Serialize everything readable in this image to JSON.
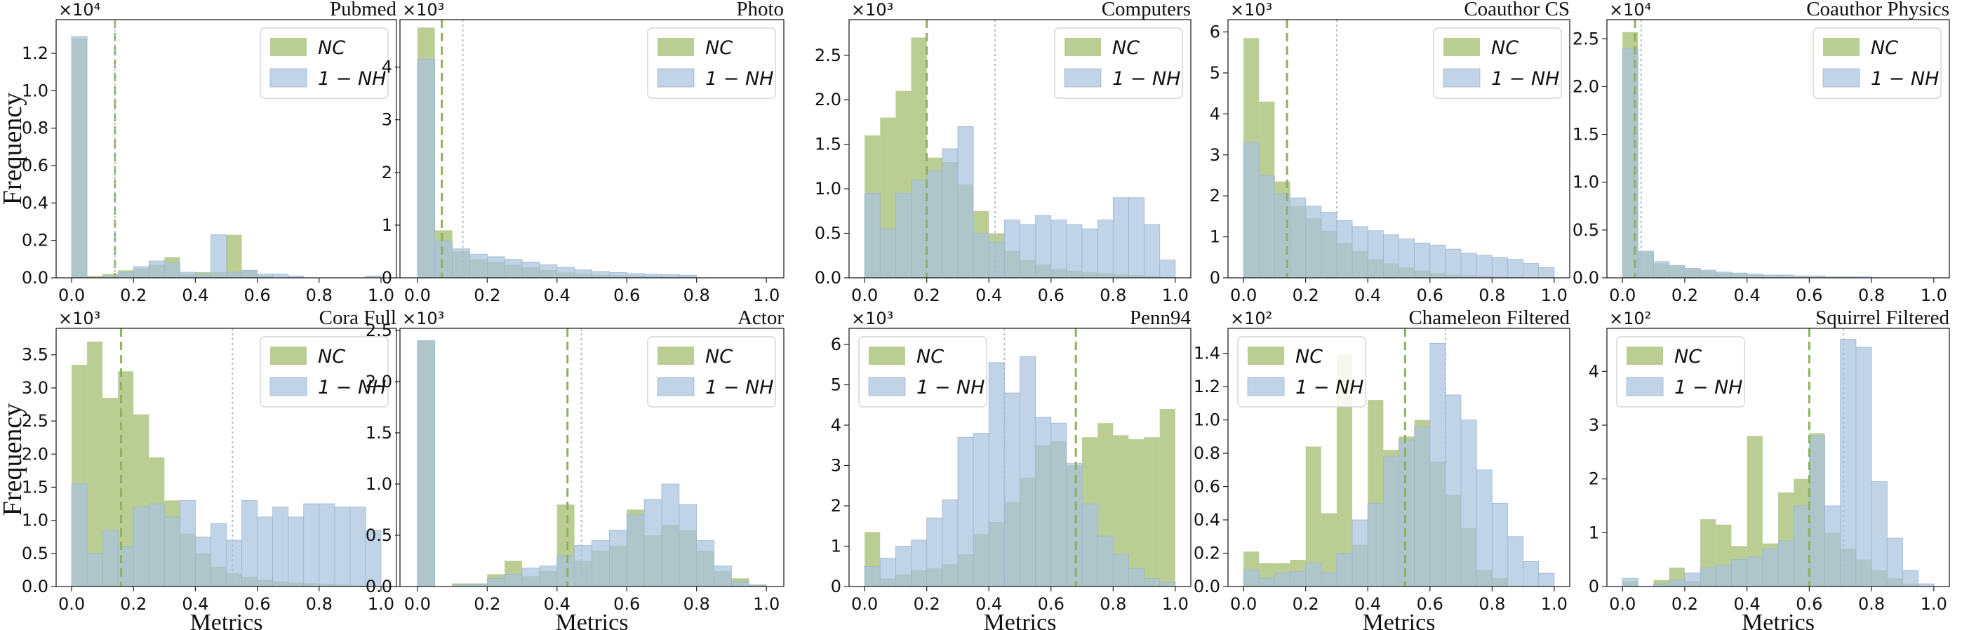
{
  "figure": {
    "ylabel": "Frequency",
    "xlabel": "Metrics",
    "colors": {
      "nc": "#8faf4f",
      "nh": "#a9c2de",
      "overlap": "#84a88c",
      "nc_line": "#8fb05f",
      "nh_line": "#a8bcd8"
    }
  },
  "chart_data": [
    {
      "type": "bar",
      "title": "Pubmed",
      "multiplier": "×10⁴",
      "legend": {
        "nc": "NC",
        "nh": "1 − NH",
        "position": "top-right"
      },
      "ylim": [
        0,
        1.38
      ],
      "yticks": [
        "0.0",
        "0.2",
        "0.4",
        "0.6",
        "0.8",
        "1.0",
        "1.2"
      ],
      "ytick_values": [
        0,
        0.2,
        0.4,
        0.6,
        0.8,
        1.0,
        1.2
      ],
      "xticks": [
        "0.0",
        "0.2",
        "0.4",
        "0.6",
        "0.8",
        "1.0"
      ],
      "nc_values": [
        1.28,
        0.01,
        0.02,
        0.04,
        0.05,
        0.07,
        0.11,
        0.02,
        0.03,
        0.03,
        0.23,
        0.04,
        0.01,
        0.0,
        0.0,
        0.0,
        0.0,
        0.0,
        0.0,
        0.0
      ],
      "nh_values": [
        1.29,
        0.0,
        0.01,
        0.03,
        0.06,
        0.09,
        0.08,
        0.03,
        0.02,
        0.23,
        0.03,
        0.04,
        0.02,
        0.02,
        0.01,
        0.0,
        0.0,
        0.0,
        0.0,
        0.01
      ],
      "nc_mean": 0.14,
      "nh_mean": 0.14
    },
    {
      "type": "bar",
      "title": "Photo",
      "multiplier": "×10³",
      "legend": {
        "nc": "NC",
        "nh": "1 − NH",
        "position": "top-right"
      },
      "ylim": [
        0,
        4.9
      ],
      "yticks": [
        "0",
        "1",
        "2",
        "3",
        "4"
      ],
      "ytick_values": [
        0,
        1,
        2,
        3,
        4
      ],
      "xticks": [
        "0.0",
        "0.2",
        "0.4",
        "0.6",
        "0.8",
        "1.0"
      ],
      "nc_values": [
        4.75,
        0.9,
        0.5,
        0.35,
        0.3,
        0.25,
        0.2,
        0.15,
        0.1,
        0.08,
        0.06,
        0.05,
        0.04,
        0.03,
        0.02,
        0.02,
        0.0,
        0.0,
        0.0,
        0.0
      ],
      "nh_values": [
        4.15,
        0.7,
        0.55,
        0.45,
        0.4,
        0.35,
        0.3,
        0.25,
        0.2,
        0.15,
        0.12,
        0.1,
        0.08,
        0.07,
        0.06,
        0.05,
        0.0,
        0.0,
        0.0,
        0.0
      ],
      "nc_mean": 0.07,
      "nh_mean": 0.13
    },
    {
      "type": "bar",
      "title": "Computers",
      "multiplier": "×10³",
      "legend": {
        "nc": "NC",
        "nh": "1 − NH",
        "position": "top-right"
      },
      "ylim": [
        0,
        2.9
      ],
      "yticks": [
        "0.0",
        "0.5",
        "1.0",
        "1.5",
        "2.0",
        "2.5"
      ],
      "ytick_values": [
        0,
        0.5,
        1.0,
        1.5,
        2.0,
        2.5
      ],
      "xticks": [
        "0.0",
        "0.2",
        "0.4",
        "0.6",
        "0.8",
        "1.0"
      ],
      "nc_values": [
        1.6,
        1.8,
        2.1,
        2.7,
        1.35,
        1.3,
        1.05,
        0.75,
        0.5,
        0.3,
        0.2,
        0.15,
        0.1,
        0.08,
        0.06,
        0.05,
        0.04,
        0.03,
        0.02,
        0.01
      ],
      "nh_values": [
        0.95,
        0.55,
        0.95,
        1.1,
        1.2,
        1.45,
        1.7,
        0.5,
        0.4,
        0.65,
        0.6,
        0.7,
        0.65,
        0.6,
        0.55,
        0.65,
        0.9,
        0.9,
        0.6,
        0.2
      ],
      "nc_mean": 0.2,
      "nh_mean": 0.42
    },
    {
      "type": "bar",
      "title": "Coauthor CS",
      "multiplier": "×10³",
      "legend": {
        "nc": "NC",
        "nh": "1 − NH",
        "position": "top-right"
      },
      "ylim": [
        0,
        6.3
      ],
      "yticks": [
        "0",
        "1",
        "2",
        "3",
        "4",
        "5",
        "6"
      ],
      "ytick_values": [
        0,
        1,
        2,
        3,
        4,
        5,
        6
      ],
      "xticks": [
        "0.0",
        "0.2",
        "0.4",
        "0.6",
        "0.8",
        "1.0"
      ],
      "nc_values": [
        5.85,
        4.3,
        2.35,
        1.75,
        1.45,
        1.15,
        0.85,
        0.65,
        0.45,
        0.35,
        0.25,
        0.18,
        0.12,
        0.08,
        0.06,
        0.04,
        0.03,
        0.02,
        0.01,
        0.01
      ],
      "nh_values": [
        3.3,
        2.5,
        2.05,
        1.95,
        1.75,
        1.6,
        1.4,
        1.25,
        1.15,
        1.05,
        0.95,
        0.85,
        0.8,
        0.7,
        0.6,
        0.55,
        0.5,
        0.45,
        0.35,
        0.25
      ],
      "nc_mean": 0.14,
      "nh_mean": 0.3
    },
    {
      "type": "bar",
      "title": "Coauthor Physics",
      "multiplier": "×10⁴",
      "legend": {
        "nc": "NC",
        "nh": "1 − NH",
        "position": "top-right"
      },
      "ylim": [
        0,
        2.7
      ],
      "yticks": [
        "0.0",
        "0.5",
        "1.0",
        "1.5",
        "2.0",
        "2.5"
      ],
      "ytick_values": [
        0,
        0.5,
        1.0,
        1.5,
        2.0,
        2.5
      ],
      "xticks": [
        "0.0",
        "0.2",
        "0.4",
        "0.6",
        "0.8",
        "1.0"
      ],
      "nc_values": [
        2.57,
        0.27,
        0.15,
        0.12,
        0.09,
        0.07,
        0.05,
        0.04,
        0.03,
        0.02,
        0.02,
        0.01,
        0.01,
        0.01,
        0.01,
        0.0,
        0.0,
        0.0,
        0.0,
        0.0
      ],
      "nh_values": [
        2.4,
        0.28,
        0.17,
        0.13,
        0.1,
        0.08,
        0.06,
        0.05,
        0.04,
        0.03,
        0.03,
        0.02,
        0.02,
        0.01,
        0.01,
        0.01,
        0.0,
        0.0,
        0.0,
        0.0
      ],
      "nc_mean": 0.04,
      "nh_mean": 0.06
    },
    {
      "type": "bar",
      "title": "Cora Full",
      "multiplier": "×10³",
      "legend": {
        "nc": "NC",
        "nh": "1 − NH",
        "position": "top-right"
      },
      "ylim": [
        0,
        3.9
      ],
      "yticks": [
        "0.0",
        "0.5",
        "1.0",
        "1.5",
        "2.0",
        "2.5",
        "3.0",
        "3.5"
      ],
      "ytick_values": [
        0,
        0.5,
        1.0,
        1.5,
        2.0,
        2.5,
        3.0,
        3.5
      ],
      "xticks": [
        "0.0",
        "0.2",
        "0.4",
        "0.6",
        "0.8",
        "1.0"
      ],
      "nc_values": [
        3.35,
        3.7,
        2.85,
        3.25,
        2.6,
        1.95,
        1.3,
        0.8,
        0.5,
        0.3,
        0.2,
        0.15,
        0.1,
        0.08,
        0.06,
        0.05,
        0.04,
        0.03,
        0.02,
        0.01
      ],
      "nh_values": [
        1.55,
        0.5,
        0.85,
        0.6,
        1.2,
        1.25,
        1.05,
        1.3,
        0.75,
        0.95,
        0.7,
        1.3,
        1.05,
        1.2,
        1.05,
        1.25,
        1.25,
        1.2,
        1.2,
        0.85
      ],
      "nc_mean": 0.16,
      "nh_mean": 0.52
    },
    {
      "type": "bar",
      "title": "Actor",
      "multiplier": "×10³",
      "legend": {
        "nc": "NC",
        "nh": "1 − NH",
        "position": "top-right"
      },
      "ylim": [
        0,
        2.52
      ],
      "yticks": [
        "0.0",
        "0.5",
        "1.0",
        "1.5",
        "2.0",
        "2.5"
      ],
      "ytick_values": [
        0,
        0.5,
        1.0,
        1.5,
        2.0,
        2.5
      ],
      "xticks": [
        "0.0",
        "0.2",
        "0.4",
        "0.6",
        "0.8",
        "1.0"
      ],
      "nc_values": [
        2.4,
        0.0,
        0.03,
        0.03,
        0.12,
        0.25,
        0.1,
        0.15,
        0.8,
        0.25,
        0.35,
        0.4,
        0.75,
        0.5,
        0.6,
        0.55,
        0.35,
        0.15,
        0.08,
        0.02
      ],
      "nh_values": [
        2.4,
        0.0,
        0.02,
        0.02,
        0.08,
        0.12,
        0.18,
        0.2,
        0.3,
        0.4,
        0.45,
        0.55,
        0.7,
        0.85,
        1.0,
        0.8,
        0.45,
        0.2,
        0.05,
        0.01
      ],
      "nc_mean": 0.43,
      "nh_mean": 0.47
    },
    {
      "type": "bar",
      "title": "Penn94",
      "multiplier": "×10³",
      "legend": {
        "nc": "NC",
        "nh": "1 − NH",
        "position": "top-left"
      },
      "ylim": [
        0,
        6.4
      ],
      "yticks": [
        "0",
        "1",
        "2",
        "3",
        "4",
        "5",
        "6"
      ],
      "ytick_values": [
        0,
        1,
        2,
        3,
        4,
        5,
        6
      ],
      "xticks": [
        "0.0",
        "0.2",
        "0.4",
        "0.6",
        "0.8",
        "1.0"
      ],
      "nc_values": [
        1.35,
        0.2,
        0.3,
        0.4,
        0.45,
        0.55,
        0.8,
        1.3,
        1.6,
        2.1,
        2.7,
        3.5,
        3.6,
        3.0,
        3.7,
        4.05,
        3.75,
        3.65,
        3.7,
        4.4
      ],
      "nh_values": [
        0.5,
        0.7,
        1.0,
        1.15,
        1.7,
        2.15,
        3.7,
        3.8,
        5.55,
        4.8,
        5.7,
        4.2,
        4.05,
        3.05,
        2.05,
        1.25,
        0.8,
        0.45,
        0.2,
        0.1
      ],
      "nc_mean": 0.68,
      "nh_mean": 0.45
    },
    {
      "type": "bar",
      "title": "Chameleon Filtered",
      "multiplier": "×10²",
      "legend": {
        "nc": "NC",
        "nh": "1 − NH",
        "position": "top-left"
      },
      "ylim": [
        0,
        1.55
      ],
      "yticks": [
        "0.0",
        "0.2",
        "0.4",
        "0.6",
        "0.8",
        "1.0",
        "1.2",
        "1.4"
      ],
      "ytick_values": [
        0,
        0.2,
        0.4,
        0.6,
        0.8,
        1.0,
        1.2,
        1.4
      ],
      "xticks": [
        "0.0",
        "0.2",
        "0.4",
        "0.6",
        "0.8",
        "1.0"
      ],
      "nc_values": [
        0.21,
        0.14,
        0.14,
        0.16,
        0.84,
        0.44,
        1.39,
        0.25,
        1.12,
        0.82,
        0.9,
        1.0,
        0.75,
        0.55,
        0.35,
        0.1,
        0.05,
        0.0,
        0.0,
        0.0
      ],
      "nh_values": [
        0.1,
        0.05,
        0.08,
        0.09,
        0.14,
        0.08,
        0.2,
        0.4,
        0.5,
        0.78,
        0.88,
        0.96,
        1.46,
        1.15,
        1.0,
        0.7,
        0.5,
        0.3,
        0.15,
        0.08
      ],
      "nc_mean": 0.52,
      "nh_mean": 0.65
    },
    {
      "type": "bar",
      "title": "Squirrel Filtered",
      "multiplier": "×10²",
      "legend": {
        "nc": "NC",
        "nh": "1 − NH",
        "position": "top-left"
      },
      "ylim": [
        0,
        4.8
      ],
      "yticks": [
        "0",
        "1",
        "2",
        "3",
        "4"
      ],
      "ytick_values": [
        0,
        1,
        2,
        3,
        4
      ],
      "xticks": [
        "0.0",
        "0.2",
        "0.4",
        "0.6",
        "0.8",
        "1.0"
      ],
      "nc_values": [
        0.1,
        0.0,
        0.12,
        0.35,
        0.1,
        1.25,
        1.15,
        0.75,
        2.8,
        0.8,
        1.75,
        2.0,
        2.85,
        1.0,
        0.7,
        0.5,
        0.3,
        0.15,
        0.05,
        0.0
      ],
      "nh_values": [
        0.15,
        0.0,
        0.05,
        0.12,
        0.25,
        0.35,
        0.4,
        0.5,
        0.55,
        0.7,
        0.85,
        1.5,
        2.8,
        1.5,
        4.6,
        4.45,
        1.95,
        0.9,
        0.3,
        0.05
      ],
      "nc_mean": 0.6,
      "nh_mean": 0.71
    }
  ]
}
